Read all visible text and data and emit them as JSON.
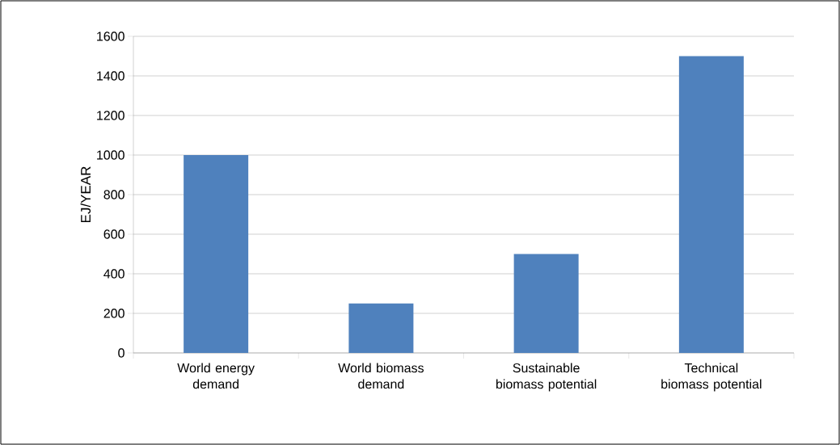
{
  "chart_data": {
    "type": "bar",
    "ylabel": "EJ/YEAR",
    "categories": [
      "World energy demand",
      "World biomass demand",
      "Sustainable biomass potential",
      "Technical biomass potential"
    ],
    "values": [
      1000,
      250,
      500,
      1500
    ],
    "color": "#4f81bd",
    "ylim": [
      0,
      1600
    ],
    "yticks": [
      0,
      200,
      400,
      600,
      800,
      1000,
      1200,
      1400,
      1600
    ],
    "grid": "y"
  }
}
